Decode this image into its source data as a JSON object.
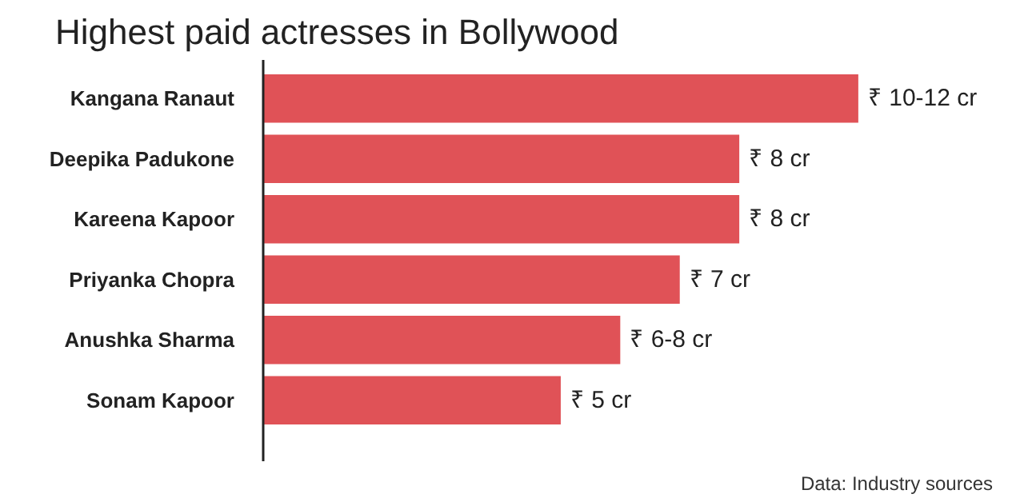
{
  "chart_data": {
    "type": "bar",
    "orientation": "horizontal",
    "title": "Highest paid actresses in Bollywood",
    "categories": [
      "Kangana Ranaut",
      "Deepika Padukone",
      "Kareena Kapoor",
      "Priyanka Chopra",
      "Anushka Sharma",
      "Sonam Kapoor"
    ],
    "values": [
      10,
      8,
      8,
      7,
      6,
      5
    ],
    "value_labels": [
      "₹ 10-12 cr",
      "₹ 8 cr",
      "₹ 8 cr",
      "₹ 7 cr",
      "₹ 6-8 cr",
      "₹ 5 cr"
    ],
    "color": "#e05257",
    "grid": false,
    "annotations": [
      "Data: Industry sources"
    ]
  }
}
